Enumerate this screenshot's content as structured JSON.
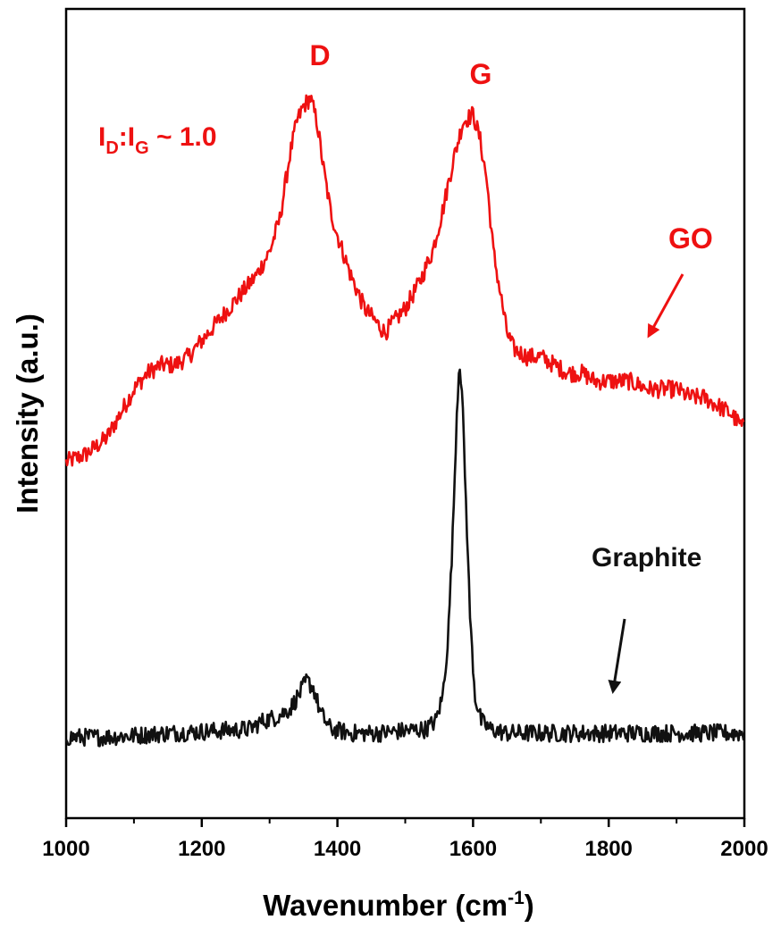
{
  "chart_data": {
    "type": "line",
    "title": "",
    "xlabel": "Wavenumber (cm",
    "xlabel_sup": "-1",
    "xlabel_close": ")",
    "ylabel": "Intensity (a.u.)",
    "xlim": [
      1000,
      2000
    ],
    "ylim": [
      0,
      100
    ],
    "x_ticks": [
      1000,
      1200,
      1400,
      1600,
      1800,
      2000
    ],
    "y_ticks_shown": false,
    "grid": false,
    "legend": "none",
    "series": [
      {
        "name": "GO",
        "color": "#ee1111",
        "points": [
          [
            1000,
            44
          ],
          [
            1030,
            45
          ],
          [
            1060,
            47
          ],
          [
            1080,
            50
          ],
          [
            1100,
            53
          ],
          [
            1120,
            55
          ],
          [
            1140,
            56
          ],
          [
            1160,
            56
          ],
          [
            1180,
            57
          ],
          [
            1200,
            59
          ],
          [
            1220,
            61
          ],
          [
            1240,
            63
          ],
          [
            1260,
            65
          ],
          [
            1280,
            67
          ],
          [
            1300,
            70
          ],
          [
            1315,
            74
          ],
          [
            1330,
            82
          ],
          [
            1340,
            86
          ],
          [
            1350,
            88
          ],
          [
            1360,
            89
          ],
          [
            1370,
            86
          ],
          [
            1380,
            80
          ],
          [
            1390,
            75
          ],
          [
            1400,
            72
          ],
          [
            1420,
            67
          ],
          [
            1440,
            63
          ],
          [
            1460,
            61
          ],
          [
            1470,
            60
          ],
          [
            1480,
            61
          ],
          [
            1500,
            63
          ],
          [
            1520,
            66
          ],
          [
            1540,
            70
          ],
          [
            1555,
            75
          ],
          [
            1570,
            81
          ],
          [
            1585,
            86
          ],
          [
            1600,
            87
          ],
          [
            1610,
            84
          ],
          [
            1620,
            79
          ],
          [
            1630,
            70
          ],
          [
            1640,
            65
          ],
          [
            1650,
            60
          ],
          [
            1660,
            58
          ],
          [
            1680,
            57
          ],
          [
            1700,
            57
          ],
          [
            1720,
            56
          ],
          [
            1740,
            55
          ],
          [
            1760,
            55
          ],
          [
            1780,
            54
          ],
          [
            1800,
            54
          ],
          [
            1830,
            54
          ],
          [
            1860,
            53
          ],
          [
            1880,
            53
          ],
          [
            1900,
            53
          ],
          [
            1920,
            52
          ],
          [
            1940,
            52
          ],
          [
            1960,
            51
          ],
          [
            1980,
            50
          ],
          [
            2000,
            48
          ]
        ],
        "noise": 1.1
      },
      {
        "name": "Graphite",
        "color": "#111111",
        "points": [
          [
            1000,
            10
          ],
          [
            1050,
            10
          ],
          [
            1100,
            10.2
          ],
          [
            1150,
            10.5
          ],
          [
            1200,
            10.7
          ],
          [
            1250,
            10.9
          ],
          [
            1270,
            11
          ],
          [
            1290,
            12
          ],
          [
            1310,
            12.5
          ],
          [
            1330,
            13.5
          ],
          [
            1345,
            15.5
          ],
          [
            1355,
            17
          ],
          [
            1365,
            16
          ],
          [
            1375,
            13
          ],
          [
            1390,
            11
          ],
          [
            1420,
            10.5
          ],
          [
            1460,
            10.5
          ],
          [
            1500,
            10.8
          ],
          [
            1530,
            11
          ],
          [
            1545,
            12
          ],
          [
            1555,
            15
          ],
          [
            1563,
            22
          ],
          [
            1570,
            35
          ],
          [
            1576,
            50
          ],
          [
            1580,
            57
          ],
          [
            1584,
            52
          ],
          [
            1590,
            38
          ],
          [
            1596,
            24
          ],
          [
            1603,
            15
          ],
          [
            1612,
            12
          ],
          [
            1625,
            11
          ],
          [
            1650,
            10.5
          ],
          [
            1700,
            10.5
          ],
          [
            1750,
            10.5
          ],
          [
            1800,
            10.5
          ],
          [
            1850,
            10.5
          ],
          [
            1900,
            10.5
          ],
          [
            1950,
            10.5
          ],
          [
            2000,
            10.5
          ]
        ],
        "noise": 1.1
      }
    ],
    "annotations": {
      "d_label": "D",
      "g_label": "G",
      "ratio_I1": "I",
      "ratio_D": "D",
      "ratio_colon": ":I",
      "ratio_G": "G",
      "ratio_rest": " ~ 1.0",
      "go_label": "GO",
      "graphite_label": "Graphite"
    }
  }
}
